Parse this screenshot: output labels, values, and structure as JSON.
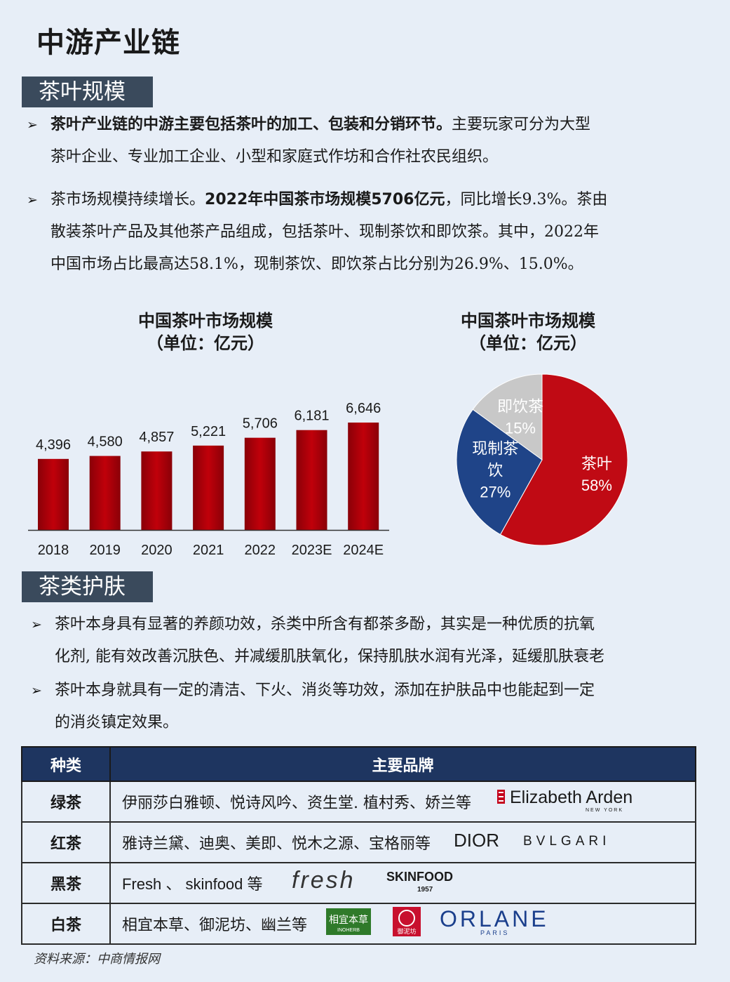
{
  "page_title": "中游产业链",
  "section1": {
    "tag": "茶叶规模",
    "bullet1": {
      "bold": "茶叶产业链的中游主要包括茶叶的加工、包装和分销环节。",
      "rest_line1": "主要玩家可分为大型",
      "line2": "茶叶企业、专业加工企业、小型和家庭式作坊和合作社农民组织。"
    },
    "bullet2": {
      "pre": "茶市场规模持续增长。",
      "bold": "2022年中国茶市场规模5706亿元",
      "post_line1": "，同比增长9.3%。茶由",
      "line2": "散装茶叶产品及其他茶产品组成，包括茶叶、现制茶饮和即饮茶。其中，2022年",
      "line3": "中国市场占比最高达58.1%，现制茶饮、即饮茶占比分别为26.9%、15.0%。"
    }
  },
  "bar_title": {
    "line1": "中国茶叶市场规模",
    "line2": "（单位：亿元）"
  },
  "pie_title": {
    "line1": "中国茶叶市场规模",
    "line2": "（单位：亿元）"
  },
  "chart_data": [
    {
      "type": "bar",
      "title": "中国茶叶市场规模（单位：亿元）",
      "categories": [
        "2018",
        "2019",
        "2020",
        "2021",
        "2022",
        "2023E",
        "2024E"
      ],
      "values": [
        4396,
        4580,
        4857,
        5221,
        5706,
        6181,
        6646
      ],
      "value_labels": [
        "4,396",
        "4,580",
        "4,857",
        "5,221",
        "5,706",
        "6,181",
        "6,646"
      ],
      "color": "#c0000a",
      "grid": false
    },
    {
      "type": "pie",
      "title": "中国茶叶市场规模（单位：亿元）",
      "slices": [
        {
          "label": "茶叶",
          "pct_label": "58%",
          "value": 58.1,
          "color": "#c00a14"
        },
        {
          "label": "现制茶饮",
          "label_lines": [
            "现制茶",
            "饮"
          ],
          "pct_label": "27%",
          "value": 26.9,
          "color": "#1f4488"
        },
        {
          "label": "即饮茶",
          "pct_label": "15%",
          "value": 15.0,
          "color": "#c8c8c8"
        }
      ]
    }
  ],
  "section2": {
    "tag": "茶类护肤",
    "bullet1": {
      "line1": "茶叶本身具有显著的养颜功效，杀类中所含有都茶多酚，其实是一种优质的抗氧",
      "line2": "化剂, 能有效改善沉肤色、并减缓肌肤氧化，保持肌肤水润有光泽，延缓肌肤衰老"
    },
    "bullet2": {
      "line1": "茶叶本身就具有一定的清洁、下火、消炎等功效，添加在护肤品中也能起到一定",
      "line2": "的消炎镇定效果。"
    }
  },
  "table": {
    "headers": [
      "种类",
      "主要品牌"
    ],
    "rows": [
      {
        "category": "绿茶",
        "brands": "伊丽莎白雅顿、悦诗风吟、资生堂. 植村秀、娇兰等",
        "logos": [
          {
            "name": "Elizabeth Arden",
            "sub": "NEW YORK"
          }
        ]
      },
      {
        "category": "红茶",
        "brands": "雅诗兰黛、迪奥、美即、悦木之源、宝格丽等",
        "logos": [
          {
            "name": "DIOR"
          },
          {
            "name": "BVLGARI"
          }
        ]
      },
      {
        "category": "黑茶",
        "brands": "Fresh 、 skinfood 等",
        "logos": [
          {
            "name": "fresh"
          },
          {
            "name": "SKINFOOD",
            "sub": "1957"
          }
        ]
      },
      {
        "category": "白茶",
        "brands": "相宜本草、御泥坊、幽兰等",
        "logos": [
          {
            "name": "相宜本草",
            "sub": "INOHERB"
          },
          {
            "name": "御泥坊"
          },
          {
            "name": "ORLANE",
            "sub": "PARIS"
          }
        ]
      }
    ]
  },
  "source": "资料来源：中商情报网"
}
